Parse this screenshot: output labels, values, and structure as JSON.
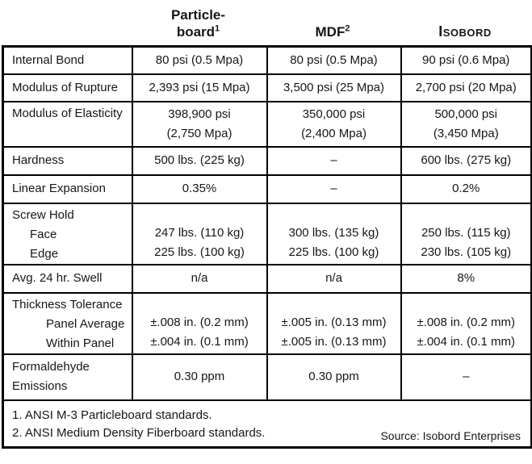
{
  "header": {
    "particleboard": {
      "line1": "Particle-",
      "line2": "board",
      "sup": "1"
    },
    "mdf": {
      "label": "MDF",
      "sup": "2"
    },
    "isobord": {
      "label": "Isobord"
    }
  },
  "rows": [
    {
      "label": [
        "Internal Bond"
      ],
      "cells": [
        [
          "80 psi (0.5 Mpa)"
        ],
        [
          "80 psi (0.5 Mpa)"
        ],
        [
          "90 psi (0.6 Mpa)"
        ]
      ]
    },
    {
      "label": [
        "Modulus of Rupture"
      ],
      "cells": [
        [
          "2,393 psi (15 Mpa)"
        ],
        [
          "3,500 psi (25 Mpa)"
        ],
        [
          "2,700 psi (20 Mpa)"
        ]
      ]
    },
    {
      "label": [
        "Modulus of Elasticity"
      ],
      "cells": [
        [
          "398,900 psi",
          "(2,750 Mpa)"
        ],
        [
          "350,000 psi",
          "(2,400 Mpa)"
        ],
        [
          "500,000 psi",
          "(3,450 Mpa)"
        ]
      ]
    },
    {
      "label": [
        "Hardness"
      ],
      "cells": [
        [
          "500 lbs. (225 kg)"
        ],
        [
          "–"
        ],
        [
          "600 lbs. (275 kg)"
        ]
      ]
    },
    {
      "label": [
        "Linear Expansion"
      ],
      "cells": [
        [
          "0.35%"
        ],
        [
          "–"
        ],
        [
          "0.2%"
        ]
      ]
    },
    {
      "label": [
        "Screw Hold",
        "Face",
        "Edge"
      ],
      "cells": [
        [
          "247 lbs. (110 kg)",
          "225 lbs. (100 kg)"
        ],
        [
          "300 lbs. (135 kg)",
          "225 lbs. (100 kg)"
        ],
        [
          "250 lbs. (115 kg)",
          "230 lbs. (105 kg)"
        ]
      ]
    },
    {
      "label": [
        "Avg. 24 hr. Swell"
      ],
      "cells": [
        [
          "n/a"
        ],
        [
          "n/a"
        ],
        [
          "8%"
        ]
      ]
    },
    {
      "label": [
        "Thickness Tolerance",
        "Panel Average",
        "Within Panel"
      ],
      "cells": [
        [
          "±.008 in. (0.2 mm)",
          "±.004 in. (0.1 mm)"
        ],
        [
          "±.005 in. (0.13 mm)",
          "±.005 in. (0.13 mm)"
        ],
        [
          "±.008 in. (0.2 mm)",
          "±.004 in. (0.1 mm)"
        ]
      ]
    },
    {
      "label": [
        "Formaldehyde",
        "Emissions"
      ],
      "cells": [
        [
          "0.30 ppm"
        ],
        [
          "0.30 ppm"
        ],
        [
          "–"
        ]
      ]
    }
  ],
  "footnotes": {
    "note1": "1. ANSI M-3 Particleboard standards.",
    "note2": "2. ANSI Medium Density Fiberboard standards.",
    "source": "Source: Isobord Enterprises"
  },
  "colors": {
    "border": "#000000",
    "text": "#161616",
    "background": "#ffffff"
  }
}
